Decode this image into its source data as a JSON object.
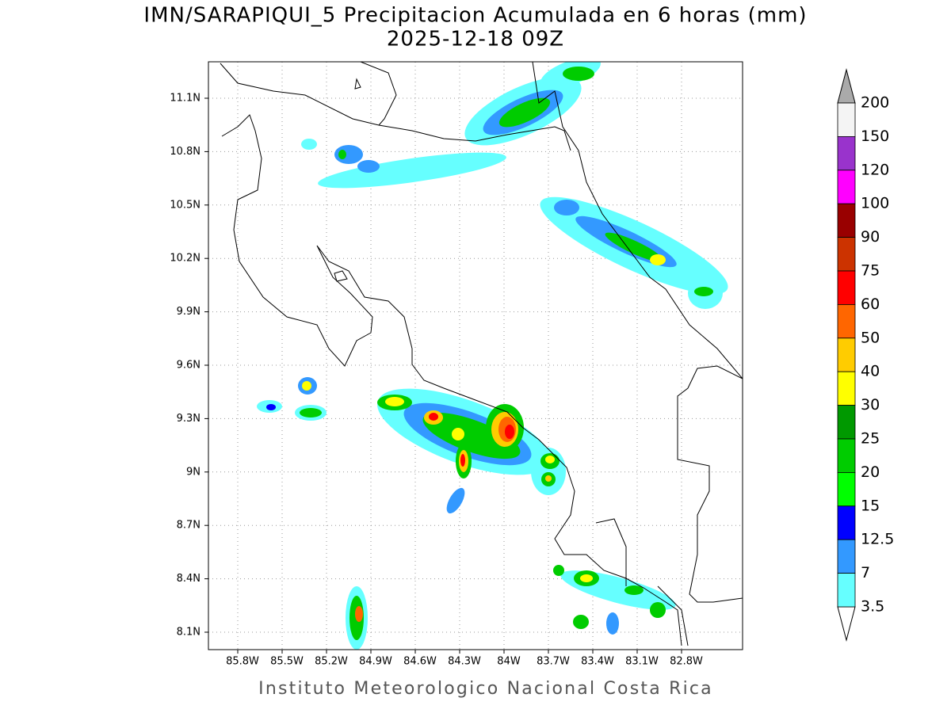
{
  "title": "IMN/SARAPIQUI_5 Precipitacion Acumulada en 6 horas (mm)",
  "subtitle": "2025-12-18 09Z",
  "lat_labels": [
    "11.1N",
    "10.8N",
    "10.5N",
    "10.2N",
    "9.9N",
    "9.6N",
    "9.3N",
    "9N",
    "8.7N",
    "8.4N",
    "8.1N"
  ],
  "lon_labels": [
    "85.8W",
    "85.5W",
    "85.2W",
    "84.9W",
    "84.6W",
    "84.3W",
    "84W",
    "83.7W",
    "83.4W",
    "83.1W",
    "82.8W"
  ],
  "colorbar": {
    "labels": [
      "200",
      "150",
      "120",
      "100",
      "90",
      "75",
      "60",
      "50",
      "40",
      "30",
      "25",
      "20",
      "15",
      "12.5",
      "7",
      "3.5"
    ],
    "colors": [
      "#f4f4f4",
      "#9933cc",
      "#ff00ff",
      "#990000",
      "#cc3300",
      "#ff0000",
      "#ff6600",
      "#ffcc00",
      "#ffff00",
      "#009900",
      "#00cc00",
      "#00ff00",
      "#0000ff",
      "#3399ff",
      "#66ffff"
    ]
  },
  "footer": "Instituto Meteorologico Nacional Costa Rica"
}
